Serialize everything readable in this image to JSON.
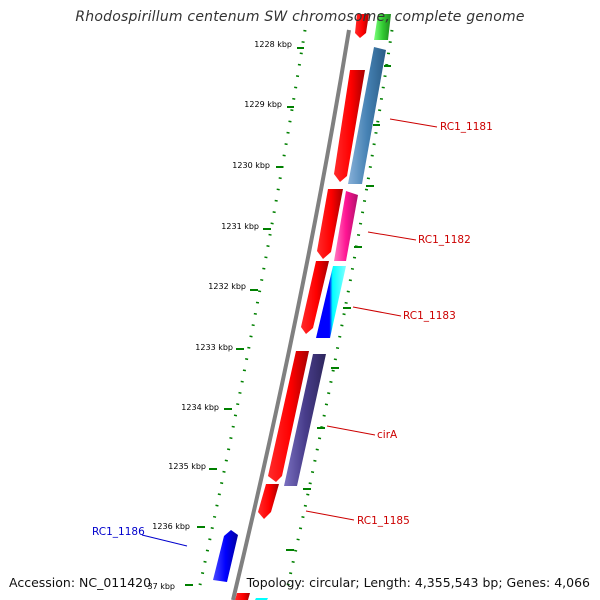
{
  "title": "Rhodospirillum centenum SW chromosome, complete genome",
  "footer": {
    "accession": "Accession: NC_011420",
    "topology": "Topology: circular; Length: 4,355,543 bp; Genes: 4,066"
  },
  "ticks": [
    "1228 kbp",
    "1229 kbp",
    "1230 kbp",
    "1231 kbp",
    "1232 kbp",
    "1233 kbp",
    "1234 kbp",
    "1235 kbp",
    "1236 kbp",
    "37 kbp"
  ],
  "gene_labels": [
    {
      "text": "RC1_1181",
      "color": "#cc0000"
    },
    {
      "text": "RC1_1182",
      "color": "#cc0000"
    },
    {
      "text": "RC1_1183",
      "color": "#cc0000"
    },
    {
      "text": "cirA",
      "color": "#cc0000"
    },
    {
      "text": "RC1_1185",
      "color": "#cc0000"
    },
    {
      "text": "RC1_1186",
      "color": "#0000cc"
    }
  ],
  "colors": {
    "backbone": "#808080",
    "tick_dots": "#008000",
    "gene_red": "#ff0000",
    "gene_steelblue": "#4682b4",
    "gene_pink": "#ff1493",
    "gene_blue": "#0000ff",
    "gene_cyan": "#00ffff",
    "gene_slate": "#483d8b",
    "gene_green": "#33cc33"
  }
}
